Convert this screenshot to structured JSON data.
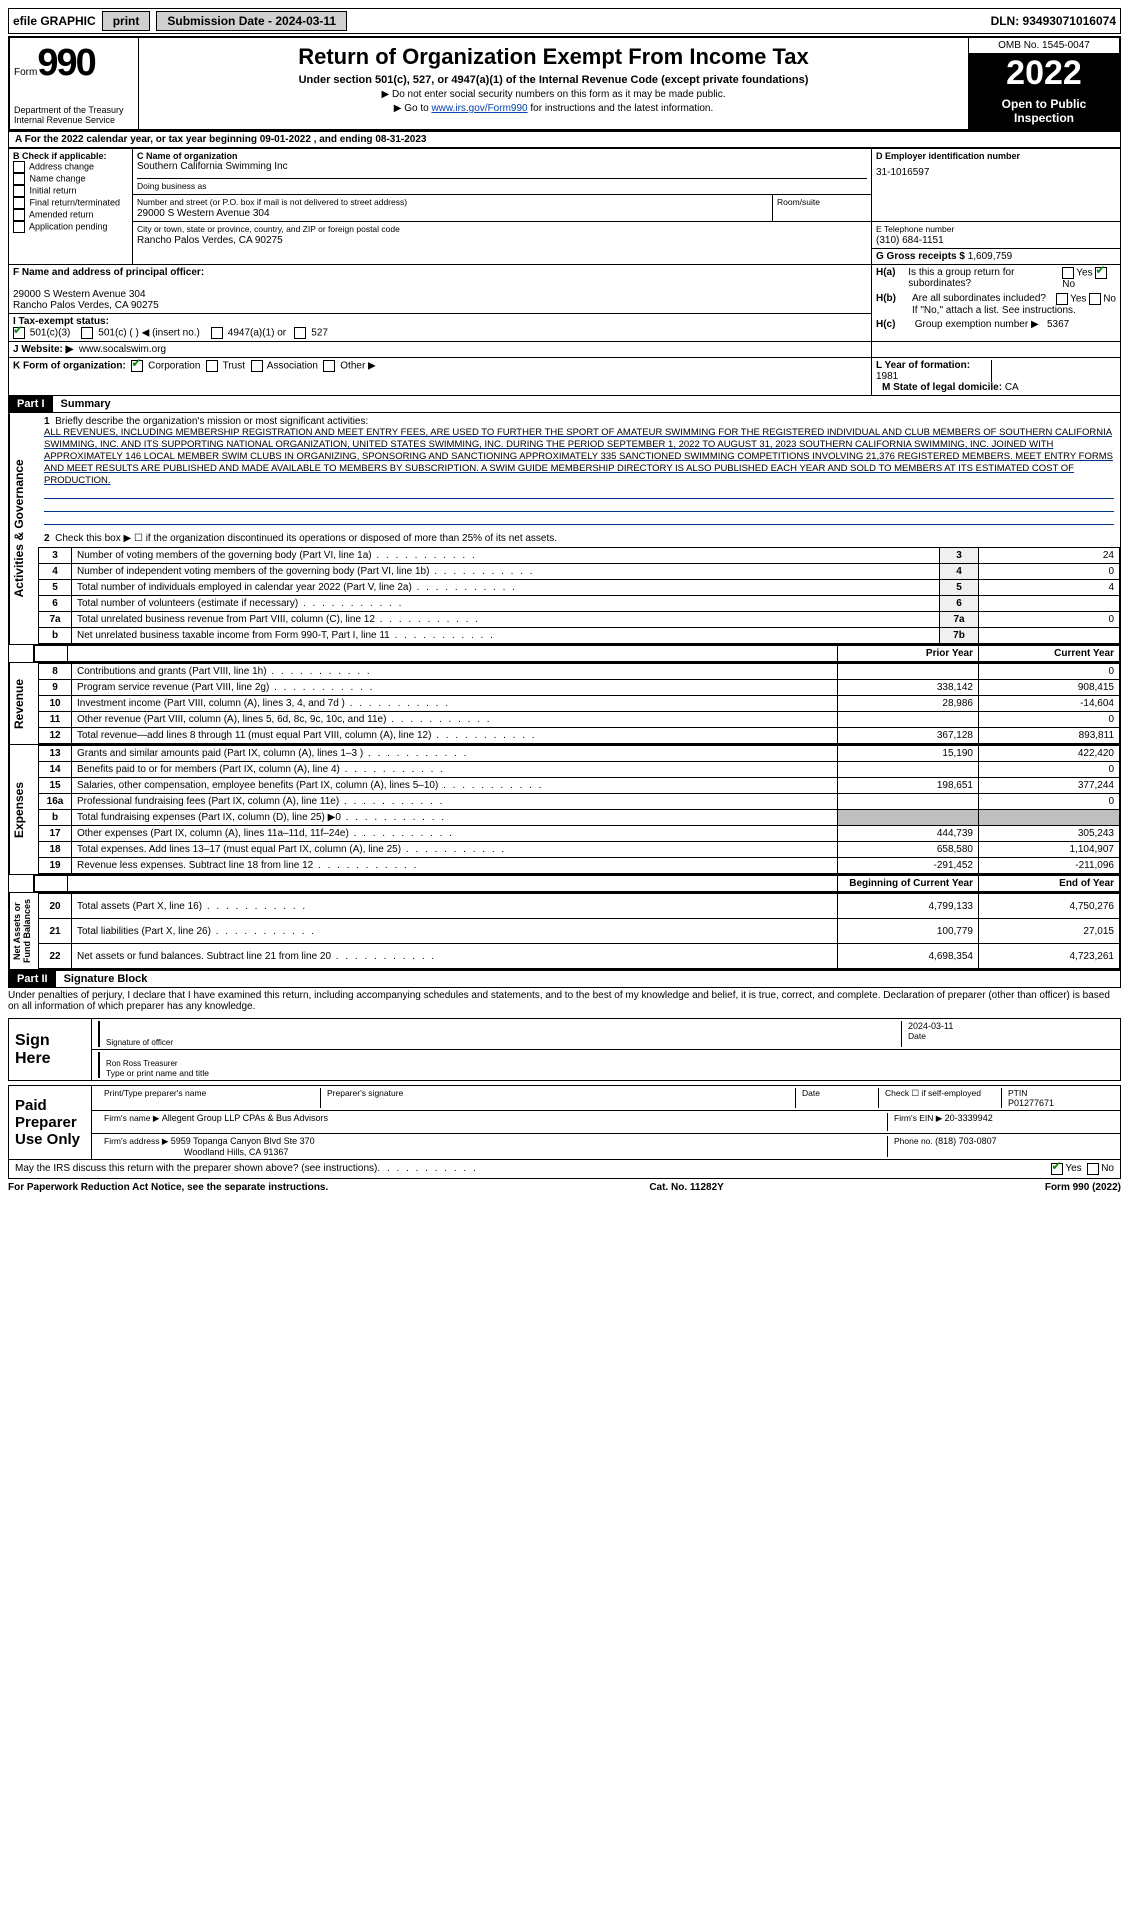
{
  "topbar": {
    "efile": "efile GRAPHIC",
    "print_btn": "print",
    "sub_label": "Submission Date - 2024-03-11",
    "dln": "DLN: 93493071016074"
  },
  "header": {
    "form_word": "Form",
    "form_num": "990",
    "title": "Return of Organization Exempt From Income Tax",
    "subtitle": "Under section 501(c), 527, or 4947(a)(1) of the Internal Revenue Code (except private foundations)",
    "note1": "▶ Do not enter social security numbers on this form as it may be made public.",
    "note2_pre": "▶ Go to ",
    "note2_link": "www.irs.gov/Form990",
    "note2_post": " for instructions and the latest information.",
    "dept": "Department of the Treasury\nInternal Revenue Service",
    "omb": "OMB No. 1545-0047",
    "year": "2022",
    "open": "Open to Public Inspection"
  },
  "lineA": "A For the 2022 calendar year, or tax year beginning 09-01-2022   , and ending 08-31-2023",
  "boxB": {
    "label": "B Check if applicable:",
    "items": [
      "Address change",
      "Name change",
      "Initial return",
      "Final return/terminated",
      "Amended return",
      "Application pending"
    ]
  },
  "boxC": {
    "label": "C Name of organization",
    "name": "Southern California Swimming Inc",
    "dba_label": "Doing business as",
    "addr_label": "Number and street (or P.O. box if mail is not delivered to street address)",
    "addr": "29000 S Western Avenue 304",
    "room_label": "Room/suite",
    "city_label": "City or town, state or province, country, and ZIP or foreign postal code",
    "city": "Rancho Palos Verdes, CA  90275"
  },
  "boxD": {
    "label": "D Employer identification number",
    "value": "31-1016597"
  },
  "boxE": {
    "label": "E Telephone number",
    "value": "(310) 684-1151"
  },
  "boxG": {
    "label": "G Gross receipts $ ",
    "value": "1,609,759"
  },
  "boxF": {
    "label": "F  Name and address of principal officer:",
    "line1": "29000 S Western Avenue 304",
    "line2": "Rancho Palos Verdes, CA  90275"
  },
  "boxH": {
    "a_label": "H(a)  Is this a group return for subordinates?",
    "b_label": "H(b)  Are all subordinates included?",
    "b_note": "If \"No,\" attach a list. See instructions.",
    "c_label": "H(c)  Group exemption number ▶",
    "c_value": "5367",
    "yes": "Yes",
    "no": "No"
  },
  "boxI": {
    "label": "I    Tax-exempt status:",
    "opts": [
      "501(c)(3)",
      "501(c) (  )  ◀ (insert no.)",
      "4947(a)(1) or",
      "527"
    ]
  },
  "boxJ": {
    "label": "J   Website: ▶",
    "value": "www.socalswim.org"
  },
  "boxK": {
    "label": "K Form of organization:",
    "opts": [
      "Corporation",
      "Trust",
      "Association",
      "Other ▶"
    ]
  },
  "boxL": {
    "label": "L Year of formation: ",
    "value": "1981"
  },
  "boxM": {
    "label": "M State of legal domicile: ",
    "value": "CA"
  },
  "part1": {
    "bar": "Part I",
    "title": "Summary",
    "q1": "Briefly describe the organization's mission or most significant activities:",
    "mission": "ALL REVENUES, INCLUDING MEMBERSHIP REGISTRATION AND MEET ENTRY FEES, ARE USED TO FURTHER THE SPORT OF AMATEUR SWIMMING FOR THE REGISTERED INDIVIDUAL AND CLUB MEMBERS OF SOUTHERN CALIFORNIA SWIMMING, INC. AND ITS SUPPORTING NATIONAL ORGANIZATION, UNITED STATES SWIMMING, INC. DURING THE PERIOD SEPTEMBER 1, 2022 TO AUGUST 31, 2023 SOUTHERN CALIFORNIA SWIMMING, INC. JOINED WITH APPROXIMATELY 146 LOCAL MEMBER SWIM CLUBS IN ORGANIZING, SPONSORING AND SANCTIONING APPROXIMATELY 335 SANCTIONED SWIMMING COMPETITIONS INVOLVING 21,376 REGISTERED MEMBERS. MEET ENTRY FORMS AND MEET RESULTS ARE PUBLISHED AND MADE AVAILABLE TO MEMBERS BY SUBSCRIPTION. A SWIM GUIDE MEMBERSHIP DIRECTORY IS ALSO PUBLISHED EACH YEAR AND SOLD TO MEMBERS AT ITS ESTIMATED COST OF PRODUCTION.",
    "q2": "Check this box ▶ ☐  if the organization discontinued its operations or disposed of more than 25% of its net assets.",
    "rows_ag": [
      {
        "n": "3",
        "desc": "Number of voting members of the governing body (Part VI, line 1a)",
        "ln": "3",
        "v": "24"
      },
      {
        "n": "4",
        "desc": "Number of independent voting members of the governing body (Part VI, line 1b)",
        "ln": "4",
        "v": "0"
      },
      {
        "n": "5",
        "desc": "Total number of individuals employed in calendar year 2022 (Part V, line 2a)",
        "ln": "5",
        "v": "4"
      },
      {
        "n": "6",
        "desc": "Total number of volunteers (estimate if necessary)",
        "ln": "6",
        "v": ""
      },
      {
        "n": "7a",
        "desc": "Total unrelated business revenue from Part VIII, column (C), line 12",
        "ln": "7a",
        "v": "0"
      },
      {
        "n": "b",
        "desc": "Net unrelated business taxable income from Form 990-T, Part I, line 11",
        "ln": "7b",
        "v": ""
      }
    ],
    "col_prior": "Prior Year",
    "col_current": "Current Year",
    "rows_rev": [
      {
        "n": "8",
        "desc": "Contributions and grants (Part VIII, line 1h)",
        "p": "",
        "c": "0"
      },
      {
        "n": "9",
        "desc": "Program service revenue (Part VIII, line 2g)",
        "p": "338,142",
        "c": "908,415"
      },
      {
        "n": "10",
        "desc": "Investment income (Part VIII, column (A), lines 3, 4, and 7d )",
        "p": "28,986",
        "c": "-14,604"
      },
      {
        "n": "11",
        "desc": "Other revenue (Part VIII, column (A), lines 5, 6d, 8c, 9c, 10c, and 11e)",
        "p": "",
        "c": "0"
      },
      {
        "n": "12",
        "desc": "Total revenue—add lines 8 through 11 (must equal Part VIII, column (A), line 12)",
        "p": "367,128",
        "c": "893,811"
      }
    ],
    "rows_exp": [
      {
        "n": "13",
        "desc": "Grants and similar amounts paid (Part IX, column (A), lines 1–3 )",
        "p": "15,190",
        "c": "422,420"
      },
      {
        "n": "14",
        "desc": "Benefits paid to or for members (Part IX, column (A), line 4)",
        "p": "",
        "c": "0"
      },
      {
        "n": "15",
        "desc": "Salaries, other compensation, employee benefits (Part IX, column (A), lines 5–10)",
        "p": "198,651",
        "c": "377,244"
      },
      {
        "n": "16a",
        "desc": "Professional fundraising fees (Part IX, column (A), line 11e)",
        "p": "",
        "c": "0"
      },
      {
        "n": "b",
        "desc": "Total fundraising expenses (Part IX, column (D), line 25) ▶0",
        "p": "SHADE",
        "c": "SHADE"
      },
      {
        "n": "17",
        "desc": "Other expenses (Part IX, column (A), lines 11a–11d, 11f–24e)",
        "p": "444,739",
        "c": "305,243"
      },
      {
        "n": "18",
        "desc": "Total expenses. Add lines 13–17 (must equal Part IX, column (A), line 25)",
        "p": "658,580",
        "c": "1,104,907"
      },
      {
        "n": "19",
        "desc": "Revenue less expenses. Subtract line 18 from line 12",
        "p": "-291,452",
        "c": "-211,096"
      }
    ],
    "col_begin": "Beginning of Current Year",
    "col_end": "End of Year",
    "rows_na": [
      {
        "n": "20",
        "desc": "Total assets (Part X, line 16)",
        "p": "4,799,133",
        "c": "4,750,276"
      },
      {
        "n": "21",
        "desc": "Total liabilities (Part X, line 26)",
        "p": "100,779",
        "c": "27,015"
      },
      {
        "n": "22",
        "desc": "Net assets or fund balances. Subtract line 21 from line 20",
        "p": "4,698,354",
        "c": "4,723,261"
      }
    ],
    "vlabels": {
      "ag": "Activities & Governance",
      "rev": "Revenue",
      "exp": "Expenses",
      "na": "Net Assets or\nFund Balances"
    }
  },
  "part2": {
    "bar": "Part II",
    "title": "Signature Block",
    "decl": "Under penalties of perjury, I declare that I have examined this return, including accompanying schedules and statements, and to the best of my knowledge and belief, it is true, correct, and complete. Declaration of preparer (other than officer) is based on all information of which preparer has any knowledge.",
    "sign_here": "Sign Here",
    "sig_officer": "Signature of officer",
    "sig_date": "Date",
    "sig_date_val": "2024-03-11",
    "sig_name": "Ron Ross  Treasurer",
    "sig_name_label": "Type or print name and title",
    "paid": "Paid Preparer Use Only",
    "prep_name_label": "Print/Type preparer's name",
    "prep_sig_label": "Preparer's signature",
    "date_label": "Date",
    "check_label": "Check ☐ if self-employed",
    "ptin_label": "PTIN",
    "ptin": "P01277671",
    "firm_name_label": "Firm's name    ▶ ",
    "firm_name": "Allegent Group LLP CPAs & Bus Advisors",
    "firm_ein_label": "Firm's EIN ▶ ",
    "firm_ein": "20-3339942",
    "firm_addr_label": "Firm's address ▶ ",
    "firm_addr1": "5959 Topanga Canyon Blvd Ste 370",
    "firm_addr2": "Woodland Hills, CA  91367",
    "phone_label": "Phone no. ",
    "phone": "(818) 703-0807",
    "discuss": "May the IRS discuss this return with the preparer shown above? (see instructions)"
  },
  "footer": {
    "left": "For Paperwork Reduction Act Notice, see the separate instructions.",
    "mid": "Cat. No. 11282Y",
    "right": "Form 990 (2022)"
  }
}
